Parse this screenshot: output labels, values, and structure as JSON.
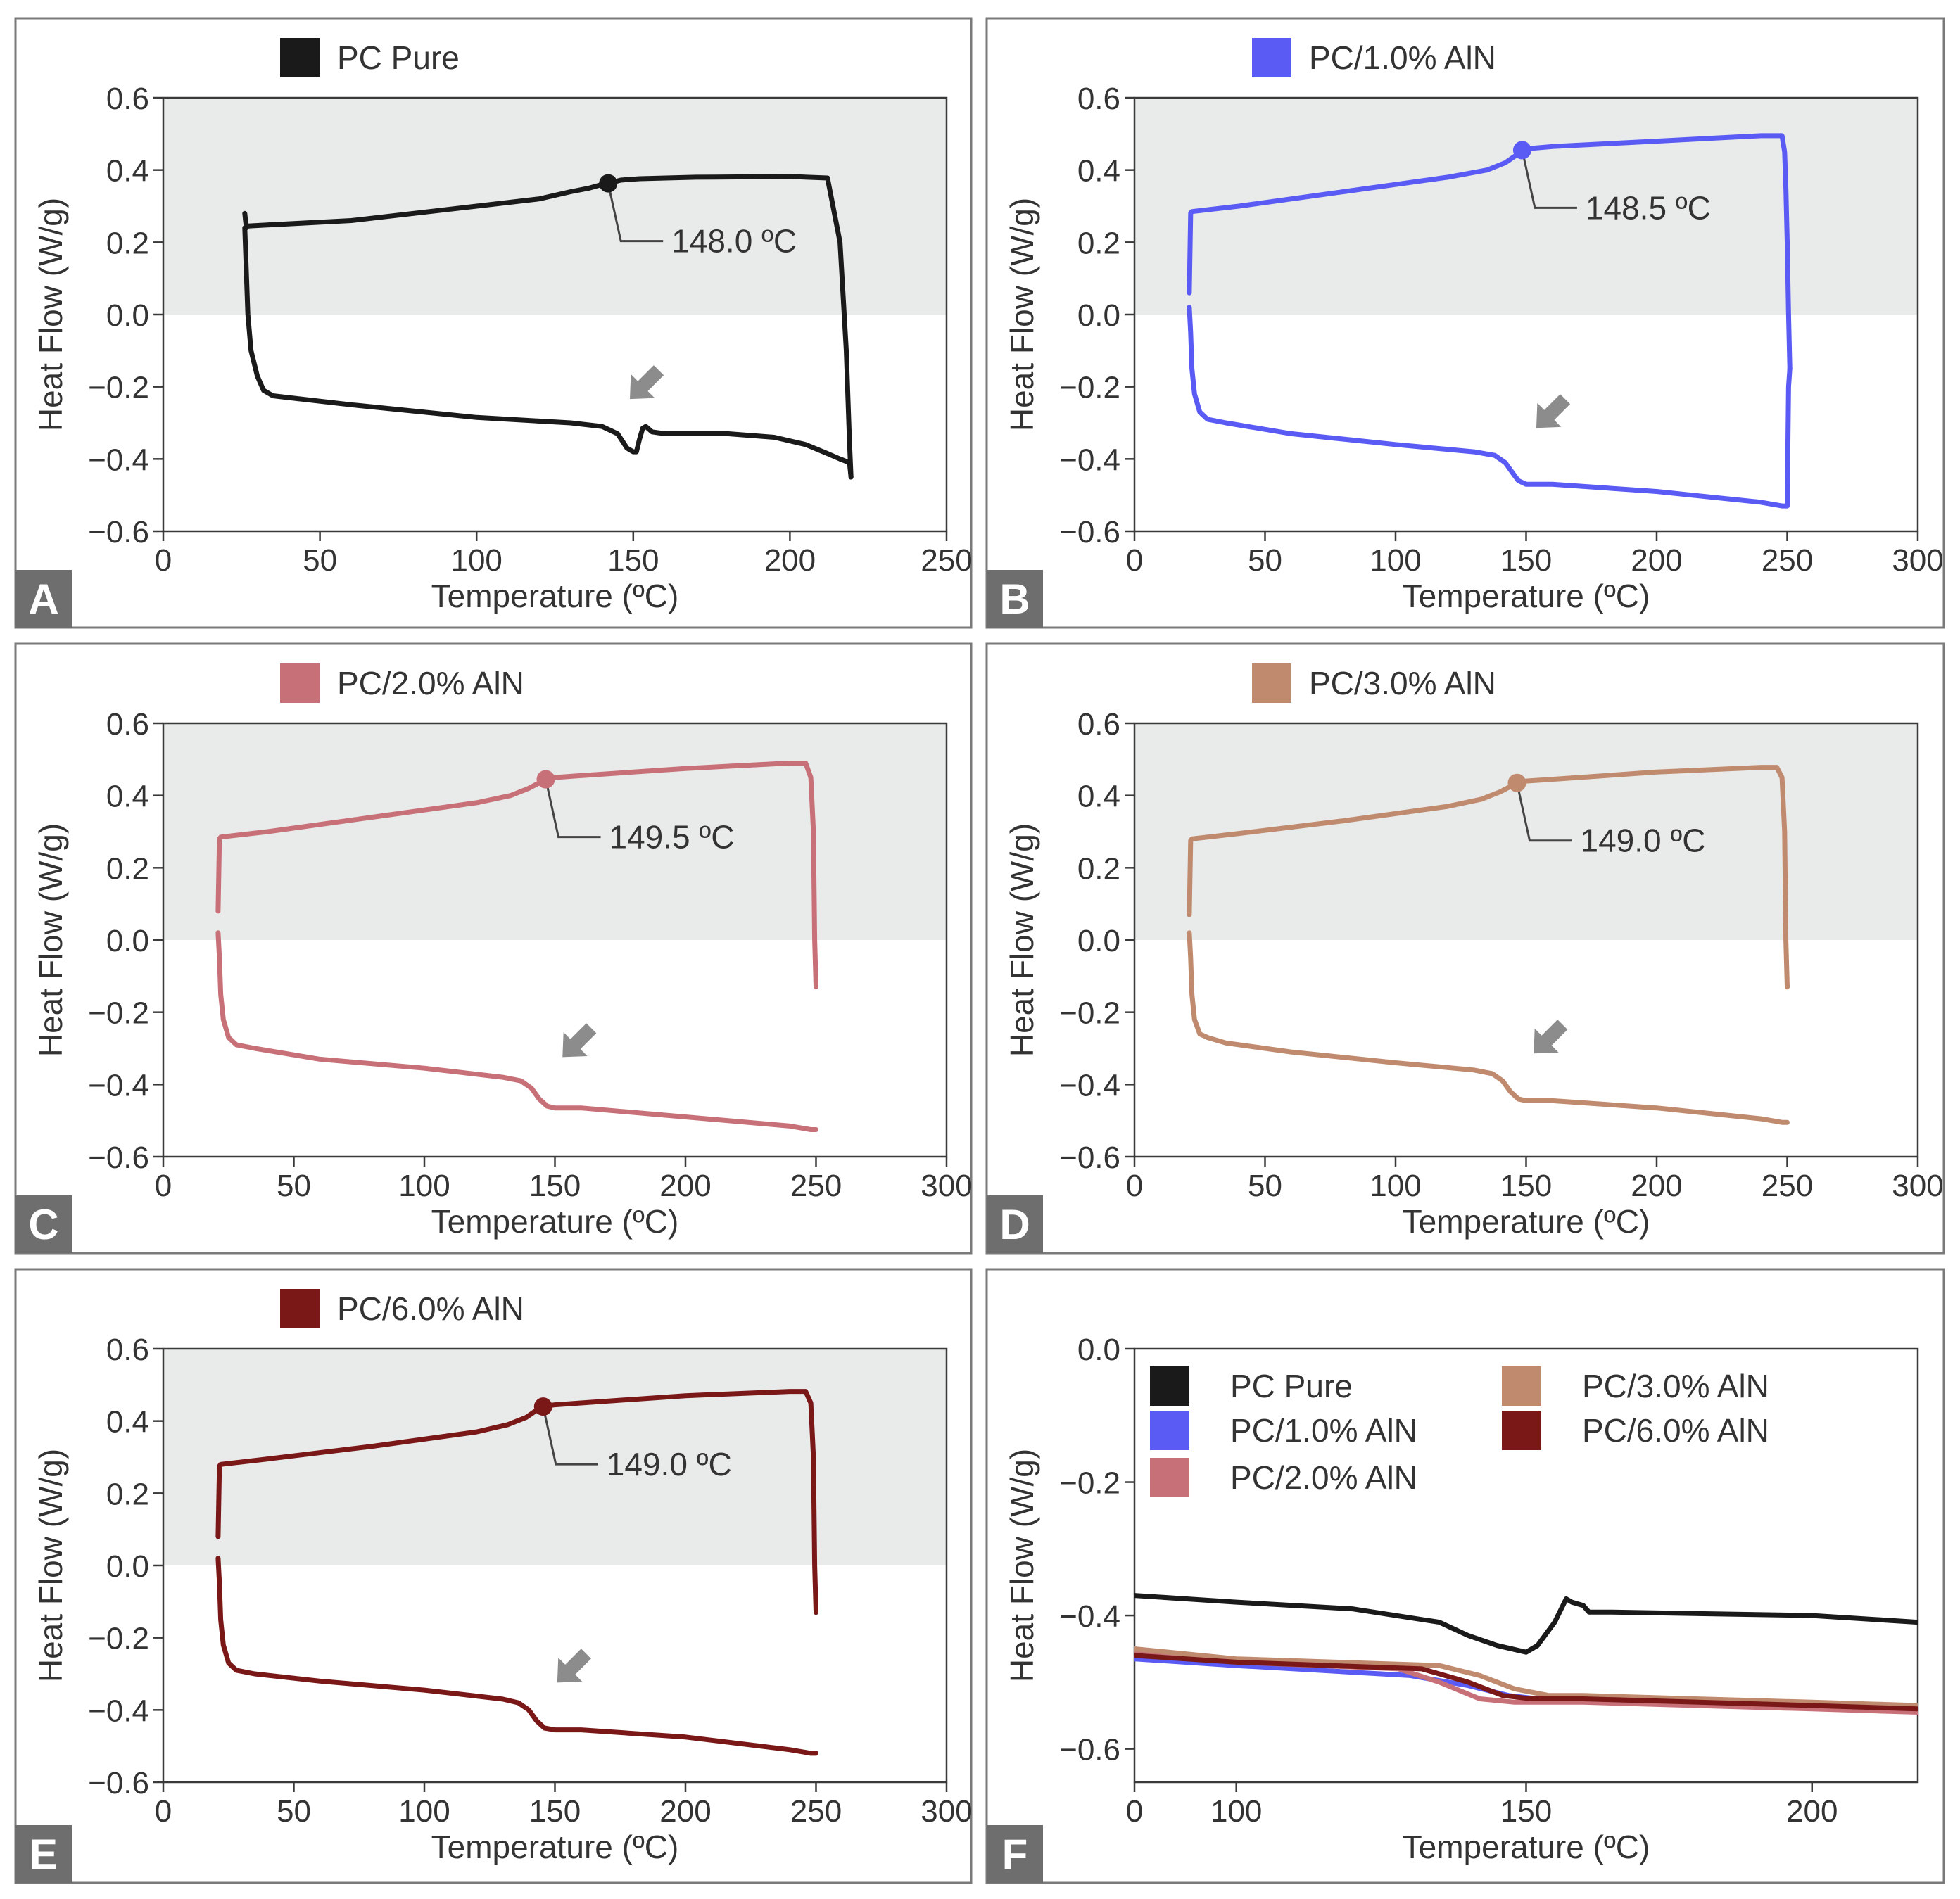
{
  "figure": {
    "colors": {
      "pure": "#1a1a1a",
      "aln1": "#5a5af5",
      "aln2": "#c87078",
      "aln3": "#c08a6e",
      "aln6": "#7a1818",
      "shade": "#e9eaea",
      "frame": "#7a7a7a",
      "arrow": "#8c8c8c",
      "letter_bg": "#6e6e6e"
    }
  },
  "chart_data": [
    {
      "id": "A",
      "panel_label": "A",
      "type": "line",
      "legend": [
        "PC Pure"
      ],
      "color": "#1a1a1a",
      "xlabel": "Temperature (ºC)",
      "ylabel": "Heat Flow (W/g)",
      "xlim": [
        0,
        250
      ],
      "ylim": [
        -0.6,
        0.6
      ],
      "xticks": [
        0,
        50,
        100,
        150,
        200,
        250
      ],
      "xtick_labels": [
        "0",
        "50",
        "100",
        "150",
        "200",
        "250"
      ],
      "yticks": [
        0.6,
        0.4,
        0.2,
        0.0,
        -0.2,
        -0.4,
        -0.6
      ],
      "ytick_labels": [
        "0.6",
        "0.4",
        "0.2",
        "0.0",
        "−0.2",
        "−0.4",
        "−0.6"
      ],
      "shaded_band": [
        0,
        0.6
      ],
      "tg_marker": {
        "x": 142,
        "y": 0.363
      },
      "annotation": "148.0 ºC",
      "arrow_at": {
        "x": 154,
        "y": -0.19
      },
      "series": [
        {
          "name": "PC Pure",
          "x": [
            26,
            26.5,
            27,
            60,
            100,
            120,
            130,
            136,
            140,
            142,
            146,
            152,
            170,
            200,
            212,
            216,
            218,
            219,
            219.5
          ],
          "y": [
            0.28,
            0.24,
            0.245,
            0.26,
            0.3,
            0.32,
            0.34,
            0.35,
            0.36,
            0.363,
            0.372,
            0.376,
            0.38,
            0.382,
            0.378,
            0.2,
            -0.1,
            -0.35,
            -0.45
          ]
        },
        {
          "name": "PC Pure",
          "x": [
            26,
            27,
            28,
            30,
            32,
            35,
            40,
            60,
            100,
            130,
            140,
            145,
            148,
            150,
            151,
            152,
            153,
            154,
            156,
            160,
            180,
            195,
            205,
            212,
            216,
            219,
            219.5
          ],
          "y": [
            0.24,
            0.0,
            -0.1,
            -0.17,
            -0.21,
            -0.225,
            -0.23,
            -0.25,
            -0.285,
            -0.3,
            -0.31,
            -0.33,
            -0.37,
            -0.38,
            -0.38,
            -0.345,
            -0.315,
            -0.31,
            -0.325,
            -0.33,
            -0.33,
            -0.34,
            -0.36,
            -0.385,
            -0.4,
            -0.41,
            -0.45
          ]
        }
      ]
    },
    {
      "id": "B",
      "panel_label": "B",
      "type": "line",
      "legend": [
        "PC/1.0% AlN"
      ],
      "color": "#5a5af5",
      "xlabel": "Temperature (ºC)",
      "ylabel": "Heat Flow (W/g)",
      "xlim": [
        0,
        300
      ],
      "ylim": [
        -0.6,
        0.6
      ],
      "xticks": [
        0,
        50,
        100,
        150,
        200,
        250,
        300
      ],
      "xtick_labels": [
        "0",
        "50",
        "100",
        "150",
        "200",
        "250",
        "300"
      ],
      "yticks": [
        0.6,
        0.4,
        0.2,
        0.0,
        -0.2,
        -0.4,
        -0.6
      ],
      "ytick_labels": [
        "0.6",
        "0.4",
        "0.2",
        "0.0",
        "−0.2",
        "−0.4",
        "−0.6"
      ],
      "shaded_band": [
        0,
        0.6
      ],
      "tg_marker": {
        "x": 148.5,
        "y": 0.455
      },
      "annotation": "148.5 ºC",
      "arrow_at": {
        "x": 160,
        "y": -0.27
      },
      "series": [
        {
          "name": "PC/1.0% AlN",
          "x": [
            21,
            21.5,
            22,
            40,
            80,
            120,
            135,
            142,
            146,
            148.5,
            152,
            160,
            200,
            240,
            248,
            249,
            249.5,
            250,
            250.5,
            251
          ],
          "y": [
            0.06,
            0.28,
            0.285,
            0.3,
            0.34,
            0.38,
            0.4,
            0.42,
            0.44,
            0.455,
            0.46,
            0.465,
            0.48,
            0.495,
            0.495,
            0.45,
            0.35,
            0.2,
            0.0,
            -0.15
          ]
        },
        {
          "name": "PC/1.0% AlN",
          "x": [
            21,
            21.5,
            22,
            23,
            25,
            28,
            35,
            60,
            100,
            130,
            138,
            142,
            145,
            147,
            150,
            160,
            200,
            240,
            248,
            250,
            250.5,
            251
          ],
          "y": [
            0.02,
            -0.05,
            -0.15,
            -0.22,
            -0.27,
            -0.29,
            -0.3,
            -0.33,
            -0.36,
            -0.38,
            -0.39,
            -0.41,
            -0.44,
            -0.46,
            -0.47,
            -0.47,
            -0.49,
            -0.52,
            -0.53,
            -0.53,
            -0.2,
            -0.15
          ]
        }
      ]
    },
    {
      "id": "C",
      "panel_label": "C",
      "type": "line",
      "legend": [
        "PC/2.0% AlN"
      ],
      "color": "#c87078",
      "xlabel": "Temperature (ºC)",
      "ylabel": "Heat Flow (W/g)",
      "xlim": [
        0,
        300
      ],
      "ylim": [
        -0.6,
        0.6
      ],
      "xticks": [
        0,
        50,
        100,
        150,
        200,
        250,
        300
      ],
      "xtick_labels": [
        "0",
        "50",
        "100",
        "150",
        "200",
        "250",
        "300"
      ],
      "yticks": [
        0.6,
        0.4,
        0.2,
        0.0,
        -0.2,
        -0.4,
        -0.6
      ],
      "ytick_labels": [
        "0.6",
        "0.4",
        "0.2",
        "0.0",
        "−0.2",
        "−0.4",
        "−0.6"
      ],
      "shaded_band": [
        0,
        0.6
      ],
      "tg_marker": {
        "x": 146.5,
        "y": 0.445
      },
      "annotation": "149.5 ºC",
      "arrow_at": {
        "x": 159,
        "y": -0.28
      },
      "series": [
        {
          "name": "PC/2.0% AlN",
          "x": [
            21,
            21.5,
            22,
            40,
            80,
            120,
            133,
            140,
            144,
            146.5,
            150,
            160,
            200,
            240,
            246,
            248,
            249,
            249.5,
            250
          ],
          "y": [
            0.08,
            0.28,
            0.285,
            0.3,
            0.34,
            0.38,
            0.4,
            0.42,
            0.435,
            0.445,
            0.45,
            0.455,
            0.475,
            0.49,
            0.49,
            0.45,
            0.3,
            0.0,
            -0.13
          ]
        },
        {
          "name": "PC/2.0% AlN",
          "x": [
            21,
            21.5,
            22,
            23,
            25,
            28,
            35,
            60,
            100,
            130,
            137,
            141,
            144,
            147,
            150,
            160,
            200,
            240,
            248,
            250
          ],
          "y": [
            0.02,
            -0.05,
            -0.15,
            -0.22,
            -0.27,
            -0.29,
            -0.3,
            -0.33,
            -0.355,
            -0.38,
            -0.39,
            -0.41,
            -0.44,
            -0.46,
            -0.465,
            -0.465,
            -0.49,
            -0.515,
            -0.525,
            -0.525
          ]
        }
      ]
    },
    {
      "id": "D",
      "panel_label": "D",
      "type": "line",
      "legend": [
        "PC/3.0% AlN"
      ],
      "color": "#c08a6e",
      "xlabel": "Temperature (ºC)",
      "ylabel": "Heat Flow (W/g)",
      "xlim": [
        0,
        300
      ],
      "ylim": [
        -0.6,
        0.6
      ],
      "xticks": [
        0,
        50,
        100,
        150,
        200,
        250,
        300
      ],
      "xtick_labels": [
        "0",
        "50",
        "100",
        "150",
        "200",
        "250",
        "300"
      ],
      "yticks": [
        0.6,
        0.4,
        0.2,
        0.0,
        -0.2,
        -0.4,
        -0.6
      ],
      "ytick_labels": [
        "0.6",
        "0.4",
        "0.2",
        "0.0",
        "−0.2",
        "−0.4",
        "−0.6"
      ],
      "shaded_band": [
        0,
        0.6
      ],
      "tg_marker": {
        "x": 146.5,
        "y": 0.435
      },
      "annotation": "149.0 ºC",
      "arrow_at": {
        "x": 159,
        "y": -0.27
      },
      "series": [
        {
          "name": "PC/3.0% AlN",
          "x": [
            21,
            21.5,
            22,
            40,
            80,
            120,
            133,
            140,
            144,
            146.5,
            150,
            160,
            200,
            240,
            246,
            248,
            249,
            249.5,
            250
          ],
          "y": [
            0.07,
            0.275,
            0.28,
            0.295,
            0.33,
            0.37,
            0.39,
            0.41,
            0.425,
            0.435,
            0.44,
            0.445,
            0.465,
            0.478,
            0.478,
            0.45,
            0.3,
            0.0,
            -0.13
          ]
        },
        {
          "name": "PC/3.0% AlN",
          "x": [
            21,
            21.5,
            22,
            23,
            25,
            28,
            35,
            60,
            100,
            130,
            137,
            141,
            144,
            147,
            150,
            160,
            200,
            240,
            248,
            250
          ],
          "y": [
            0.02,
            -0.05,
            -0.15,
            -0.22,
            -0.26,
            -0.27,
            -0.285,
            -0.31,
            -0.34,
            -0.36,
            -0.37,
            -0.39,
            -0.42,
            -0.44,
            -0.445,
            -0.445,
            -0.465,
            -0.495,
            -0.505,
            -0.505
          ]
        }
      ]
    },
    {
      "id": "E",
      "panel_label": "E",
      "type": "line",
      "legend": [
        "PC/6.0% AlN"
      ],
      "color": "#7a1818",
      "xlabel": "Temperature (ºC)",
      "ylabel": "Heat Flow (W/g)",
      "xlim": [
        0,
        300
      ],
      "ylim": [
        -0.6,
        0.6
      ],
      "xticks": [
        0,
        50,
        100,
        150,
        200,
        250,
        300
      ],
      "xtick_labels": [
        "0",
        "50",
        "100",
        "150",
        "200",
        "250",
        "300"
      ],
      "yticks": [
        0.6,
        0.4,
        0.2,
        0.0,
        -0.2,
        -0.4,
        -0.6
      ],
      "ytick_labels": [
        "0.6",
        "0.4",
        "0.2",
        "0.0",
        "−0.2",
        "−0.4",
        "−0.6"
      ],
      "shaded_band": [
        0,
        0.6
      ],
      "tg_marker": {
        "x": 145.5,
        "y": 0.44
      },
      "annotation": "149.0 ºC",
      "arrow_at": {
        "x": 157,
        "y": -0.28
      },
      "series": [
        {
          "name": "PC/6.0% AlN",
          "x": [
            21,
            21.5,
            22,
            40,
            80,
            120,
            132,
            139,
            143,
            145.5,
            150,
            160,
            200,
            240,
            246,
            248,
            249,
            249.5,
            250
          ],
          "y": [
            0.08,
            0.275,
            0.28,
            0.295,
            0.33,
            0.37,
            0.39,
            0.41,
            0.43,
            0.44,
            0.445,
            0.45,
            0.47,
            0.482,
            0.482,
            0.45,
            0.3,
            0.0,
            -0.13
          ]
        },
        {
          "name": "PC/6.0% AlN",
          "x": [
            21,
            21.5,
            22,
            23,
            25,
            28,
            35,
            60,
            100,
            130,
            136,
            140,
            143,
            146,
            150,
            160,
            200,
            240,
            248,
            250
          ],
          "y": [
            0.02,
            -0.05,
            -0.15,
            -0.22,
            -0.27,
            -0.29,
            -0.3,
            -0.32,
            -0.345,
            -0.37,
            -0.38,
            -0.4,
            -0.43,
            -0.45,
            -0.455,
            -0.455,
            -0.475,
            -0.51,
            -0.52,
            -0.52
          ]
        }
      ]
    },
    {
      "id": "F",
      "panel_label": "F",
      "type": "line",
      "legend": [
        "PC Pure",
        "PC/1.0% AlN",
        "PC/2.0% AlN",
        "PC/3.0% AlN",
        "PC/6.0% AlN"
      ],
      "xlabel": "Temperature (ºC)",
      "ylabel": "Heat Flow (W/g)",
      "x_breakpoints": [
        [
          0,
          0
        ],
        [
          100,
          0.13
        ],
        [
          150,
          0.5
        ],
        [
          200,
          0.865
        ],
        [
          220,
          1.0
        ]
      ],
      "ylim": [
        -0.65,
        0.0
      ],
      "xticks": [
        0,
        100,
        150,
        200
      ],
      "xtick_labels": [
        "0",
        "100",
        "150",
        "200"
      ],
      "yticks": [
        0.0,
        -0.2,
        -0.4,
        -0.6
      ],
      "ytick_labels": [
        "0.0",
        "−0.2",
        "−0.4",
        "−0.6"
      ],
      "series": [
        {
          "name": "PC Pure",
          "color": "#1a1a1a",
          "x": [
            0,
            50,
            100,
            120,
            135,
            140,
            145,
            150,
            152,
            155,
            157,
            158,
            160,
            161,
            165,
            200,
            220
          ],
          "y": [
            -0.37,
            -0.375,
            -0.38,
            -0.39,
            -0.41,
            -0.43,
            -0.445,
            -0.455,
            -0.445,
            -0.41,
            -0.375,
            -0.38,
            -0.385,
            -0.395,
            -0.395,
            -0.4,
            -0.41
          ]
        },
        {
          "name": "PC/1.0% AlN",
          "color": "#5a5af5",
          "x": [
            0,
            100,
            130,
            140,
            147,
            152,
            160,
            200,
            220
          ],
          "y": [
            -0.465,
            -0.475,
            -0.49,
            -0.505,
            -0.52,
            -0.525,
            -0.525,
            -0.535,
            -0.54
          ]
        },
        {
          "name": "PC/2.0% AlN",
          "color": "#c87078",
          "x": [
            0,
            100,
            128,
            135,
            142,
            148,
            160,
            200,
            220
          ],
          "y": [
            -0.455,
            -0.47,
            -0.48,
            -0.5,
            -0.525,
            -0.53,
            -0.53,
            -0.54,
            -0.545
          ]
        },
        {
          "name": "PC/3.0% AlN",
          "color": "#c08a6e",
          "x": [
            0,
            100,
            135,
            142,
            148,
            154,
            160,
            200,
            220
          ],
          "y": [
            -0.45,
            -0.465,
            -0.475,
            -0.49,
            -0.51,
            -0.52,
            -0.52,
            -0.53,
            -0.535
          ]
        },
        {
          "name": "PC/6.0% AlN",
          "color": "#7a1818",
          "x": [
            0,
            100,
            132,
            140,
            146,
            151,
            160,
            200,
            220
          ],
          "y": [
            -0.46,
            -0.47,
            -0.48,
            -0.5,
            -0.52,
            -0.525,
            -0.525,
            -0.535,
            -0.54
          ]
        }
      ]
    }
  ]
}
